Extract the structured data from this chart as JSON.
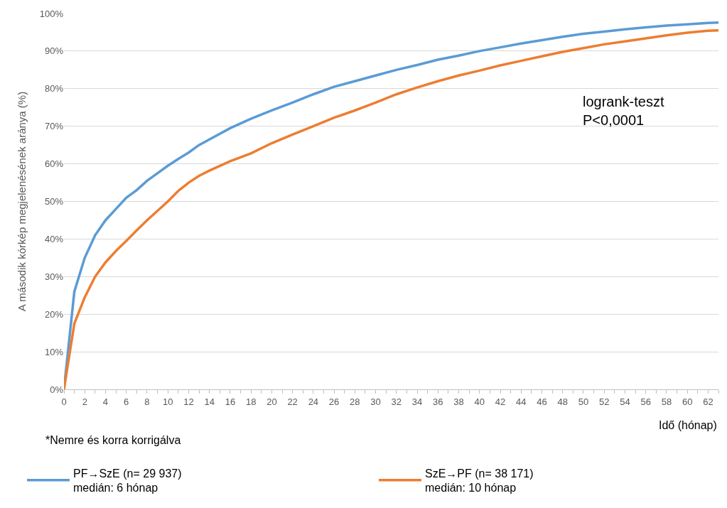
{
  "chart_data": {
    "type": "line",
    "ylabel": "A második kórkép megjelenésének aránya (%)",
    "xlabel": "Idő (hónap)",
    "x": [
      0,
      1,
      2,
      3,
      4,
      5,
      6,
      7,
      8,
      9,
      10,
      11,
      12,
      13,
      14,
      16,
      18,
      20,
      22,
      24,
      26,
      28,
      30,
      32,
      34,
      36,
      38,
      40,
      42,
      44,
      46,
      48,
      50,
      52,
      54,
      56,
      58,
      60,
      62,
      63
    ],
    "series": [
      {
        "name": "PF→SzE (n= 29 937)\nmedián: 6 hónap",
        "color": "#5b9bd5",
        "values": [
          0,
          26,
          35,
          41,
          45,
          48,
          51,
          53,
          55.5,
          57.5,
          59.5,
          61.3,
          63,
          65,
          66.5,
          69.5,
          72,
          74.2,
          76.3,
          78.5,
          80.5,
          82,
          83.5,
          85,
          86.3,
          87.7,
          88.8,
          90,
          91,
          92,
          92.9,
          93.8,
          94.6,
          95.2,
          95.8,
          96.3,
          96.8,
          97.1,
          97.5,
          97.6
        ]
      },
      {
        "name": "SzE→PF (n= 38 171)\nmedián: 10 hónap",
        "color": "#ed7d31",
        "values": [
          0,
          17.5,
          24.5,
          30,
          33.8,
          36.8,
          39.5,
          42.3,
          45,
          47.5,
          50,
          52.8,
          55,
          56.8,
          58.2,
          60.7,
          62.8,
          65.5,
          67.8,
          70,
          72.3,
          74.2,
          76.3,
          78.5,
          80.3,
          82,
          83.5,
          84.8,
          86.2,
          87.4,
          88.6,
          89.8,
          90.8,
          91.8,
          92.6,
          93.4,
          94.2,
          94.9,
          95.4,
          95.5
        ]
      }
    ],
    "xlim": [
      0,
      63
    ],
    "xticks": [
      0,
      2,
      4,
      6,
      8,
      10,
      12,
      14,
      16,
      18,
      20,
      22,
      24,
      26,
      28,
      30,
      32,
      34,
      36,
      38,
      40,
      42,
      44,
      46,
      48,
      50,
      52,
      54,
      56,
      58,
      60,
      62
    ],
    "ylim": [
      0,
      100
    ],
    "yticks": [
      {
        "value": 0,
        "label": "0%"
      },
      {
        "value": 10,
        "label": "10%"
      },
      {
        "value": 20,
        "label": "20%"
      },
      {
        "value": 30,
        "label": "30%"
      },
      {
        "value": 40,
        "label": "40%"
      },
      {
        "value": 50,
        "label": "50%"
      },
      {
        "value": 60,
        "label": "60%"
      },
      {
        "value": 70,
        "label": "70%"
      },
      {
        "value": 80,
        "label": "80%"
      },
      {
        "value": 90,
        "label": "90%"
      },
      {
        "value": 100,
        "label": "100%"
      }
    ],
    "grid": "y",
    "legend": "bottom",
    "marker": "none",
    "line_style": "solid",
    "annotations": [
      "logrank-teszt\nP<0,0001",
      "*Nemre és korra korrigálva"
    ]
  }
}
